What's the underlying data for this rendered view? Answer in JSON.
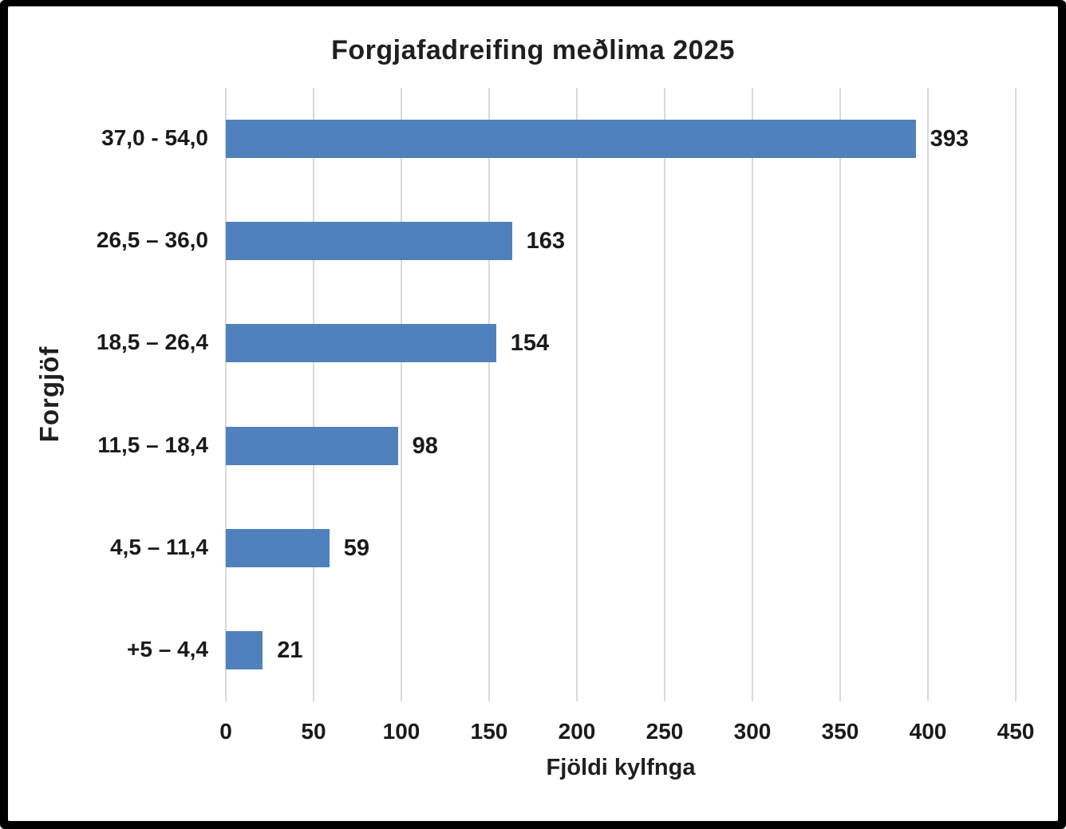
{
  "chart_data": {
    "type": "bar",
    "orientation": "horizontal",
    "title": "Forgjafadreifing meðlima 2025",
    "xlabel": "Fjöldi kylfnga",
    "ylabel": "Forgjöf",
    "categories": [
      "37,0 - 54,0",
      "26,5 – 36,0",
      "18,5 – 26,4",
      "11,5 – 18,4",
      "4,5 – 11,4",
      "+5 – 4,4"
    ],
    "values": [
      393,
      163,
      154,
      98,
      59,
      21
    ],
    "data_labels": [
      "393",
      "163",
      "154",
      "98",
      "59",
      "21"
    ],
    "xlim": [
      0,
      450
    ],
    "xticks": [
      0,
      50,
      100,
      150,
      200,
      250,
      300,
      350,
      400,
      450
    ],
    "grid": "vertical-only",
    "legend": "none",
    "colors": {
      "bar_fill": "#4f81bd",
      "gridline": "#d9d9d9",
      "text": "#1a1a1a",
      "background": "#ffffff",
      "frame_border": "#000000"
    }
  }
}
